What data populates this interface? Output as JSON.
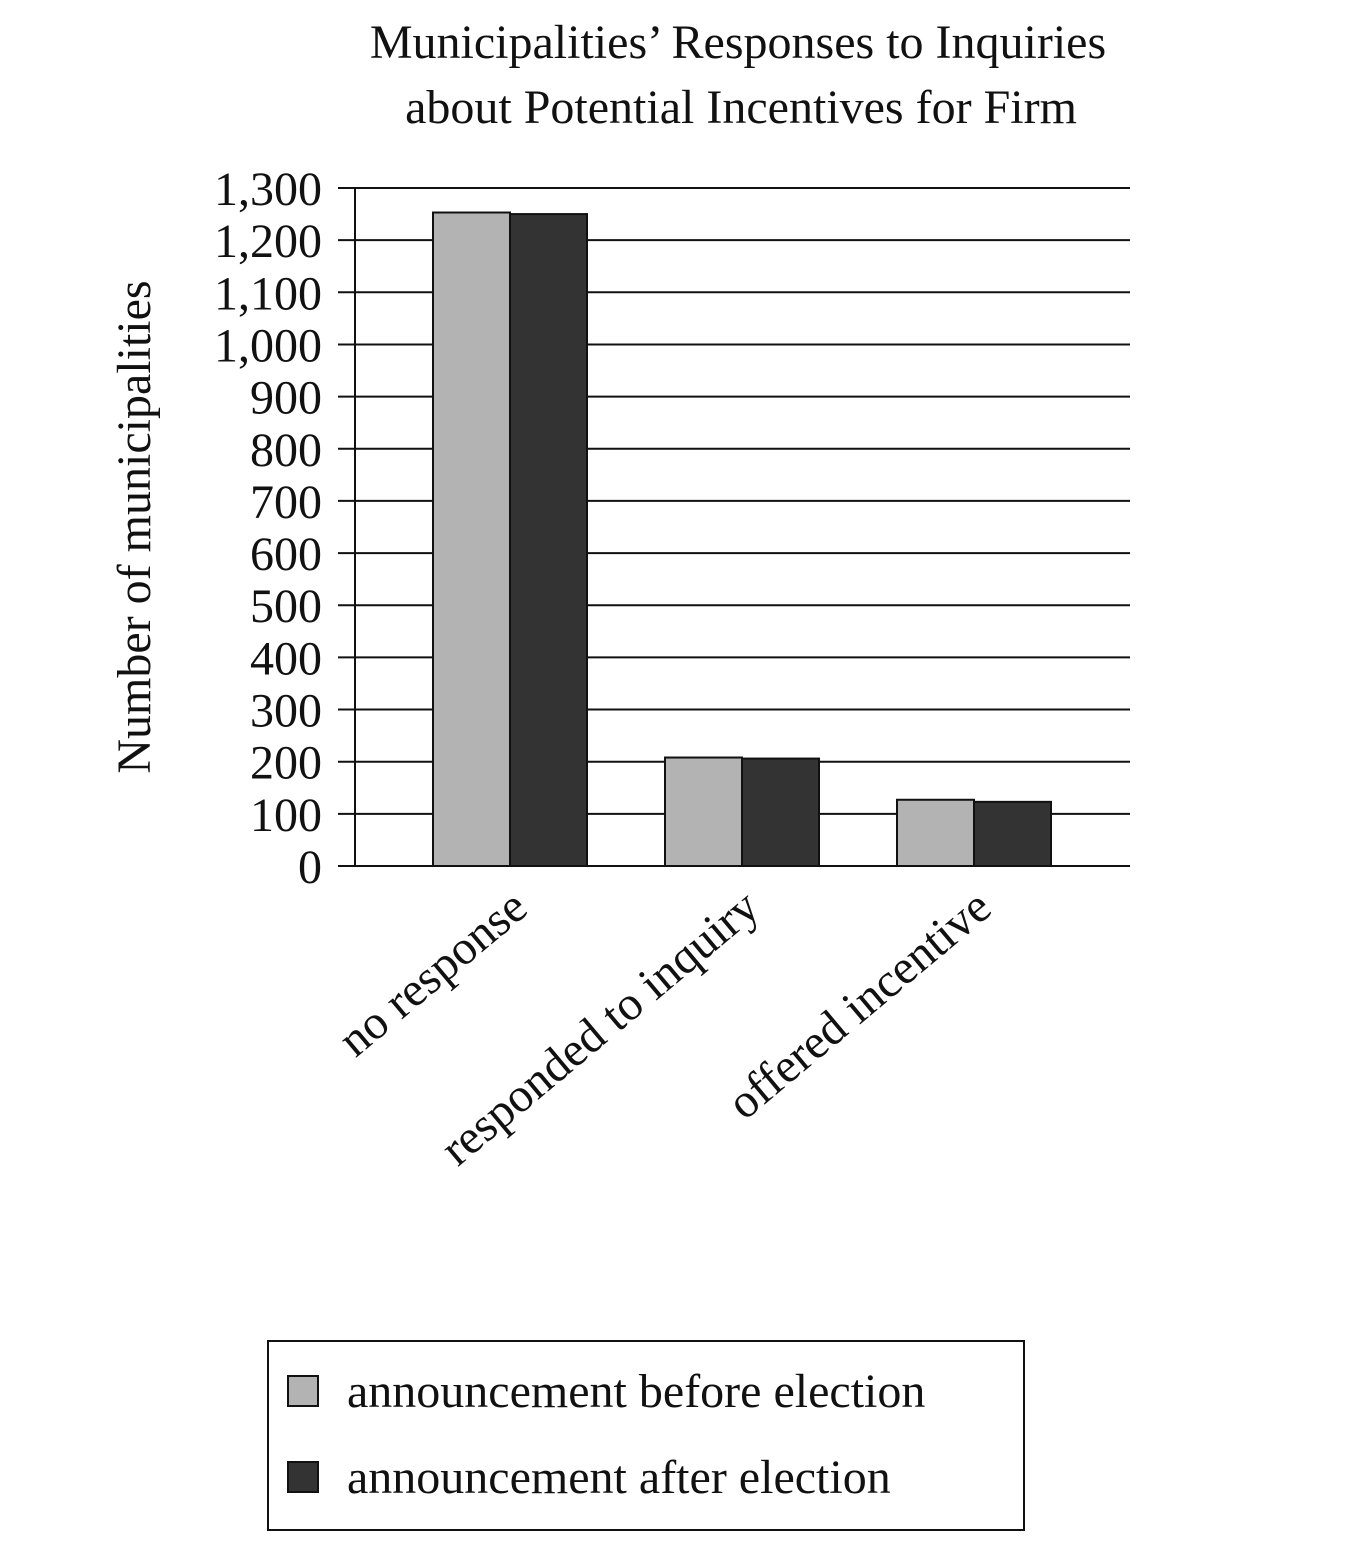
{
  "chart_data": {
    "type": "bar",
    "title": [
      "Municipalities’ Responses to Inquiries",
      "about Potential Incentives for Firm"
    ],
    "ylabel": "Number of municipalities",
    "xlabel": "",
    "ylim": [
      0,
      1300
    ],
    "yticks": [
      0,
      100,
      200,
      300,
      400,
      500,
      600,
      700,
      800,
      900,
      1000,
      1100,
      1200,
      1300
    ],
    "ytick_labels": [
      "0",
      "100",
      "200",
      "300",
      "400",
      "500",
      "600",
      "700",
      "800",
      "900",
      "1,000",
      "1,100",
      "1,200",
      "1,300"
    ],
    "categories": [
      "no response",
      "responded to inquiry",
      "offered incentive"
    ],
    "series": [
      {
        "name": "announcement before election",
        "color": "#b3b3b3",
        "values": [
          1253,
          208,
          127
        ]
      },
      {
        "name": "announcement after election",
        "color": "#333333",
        "values": [
          1250,
          206,
          123
        ]
      }
    ],
    "grid": true,
    "legend_position": "bottom"
  }
}
